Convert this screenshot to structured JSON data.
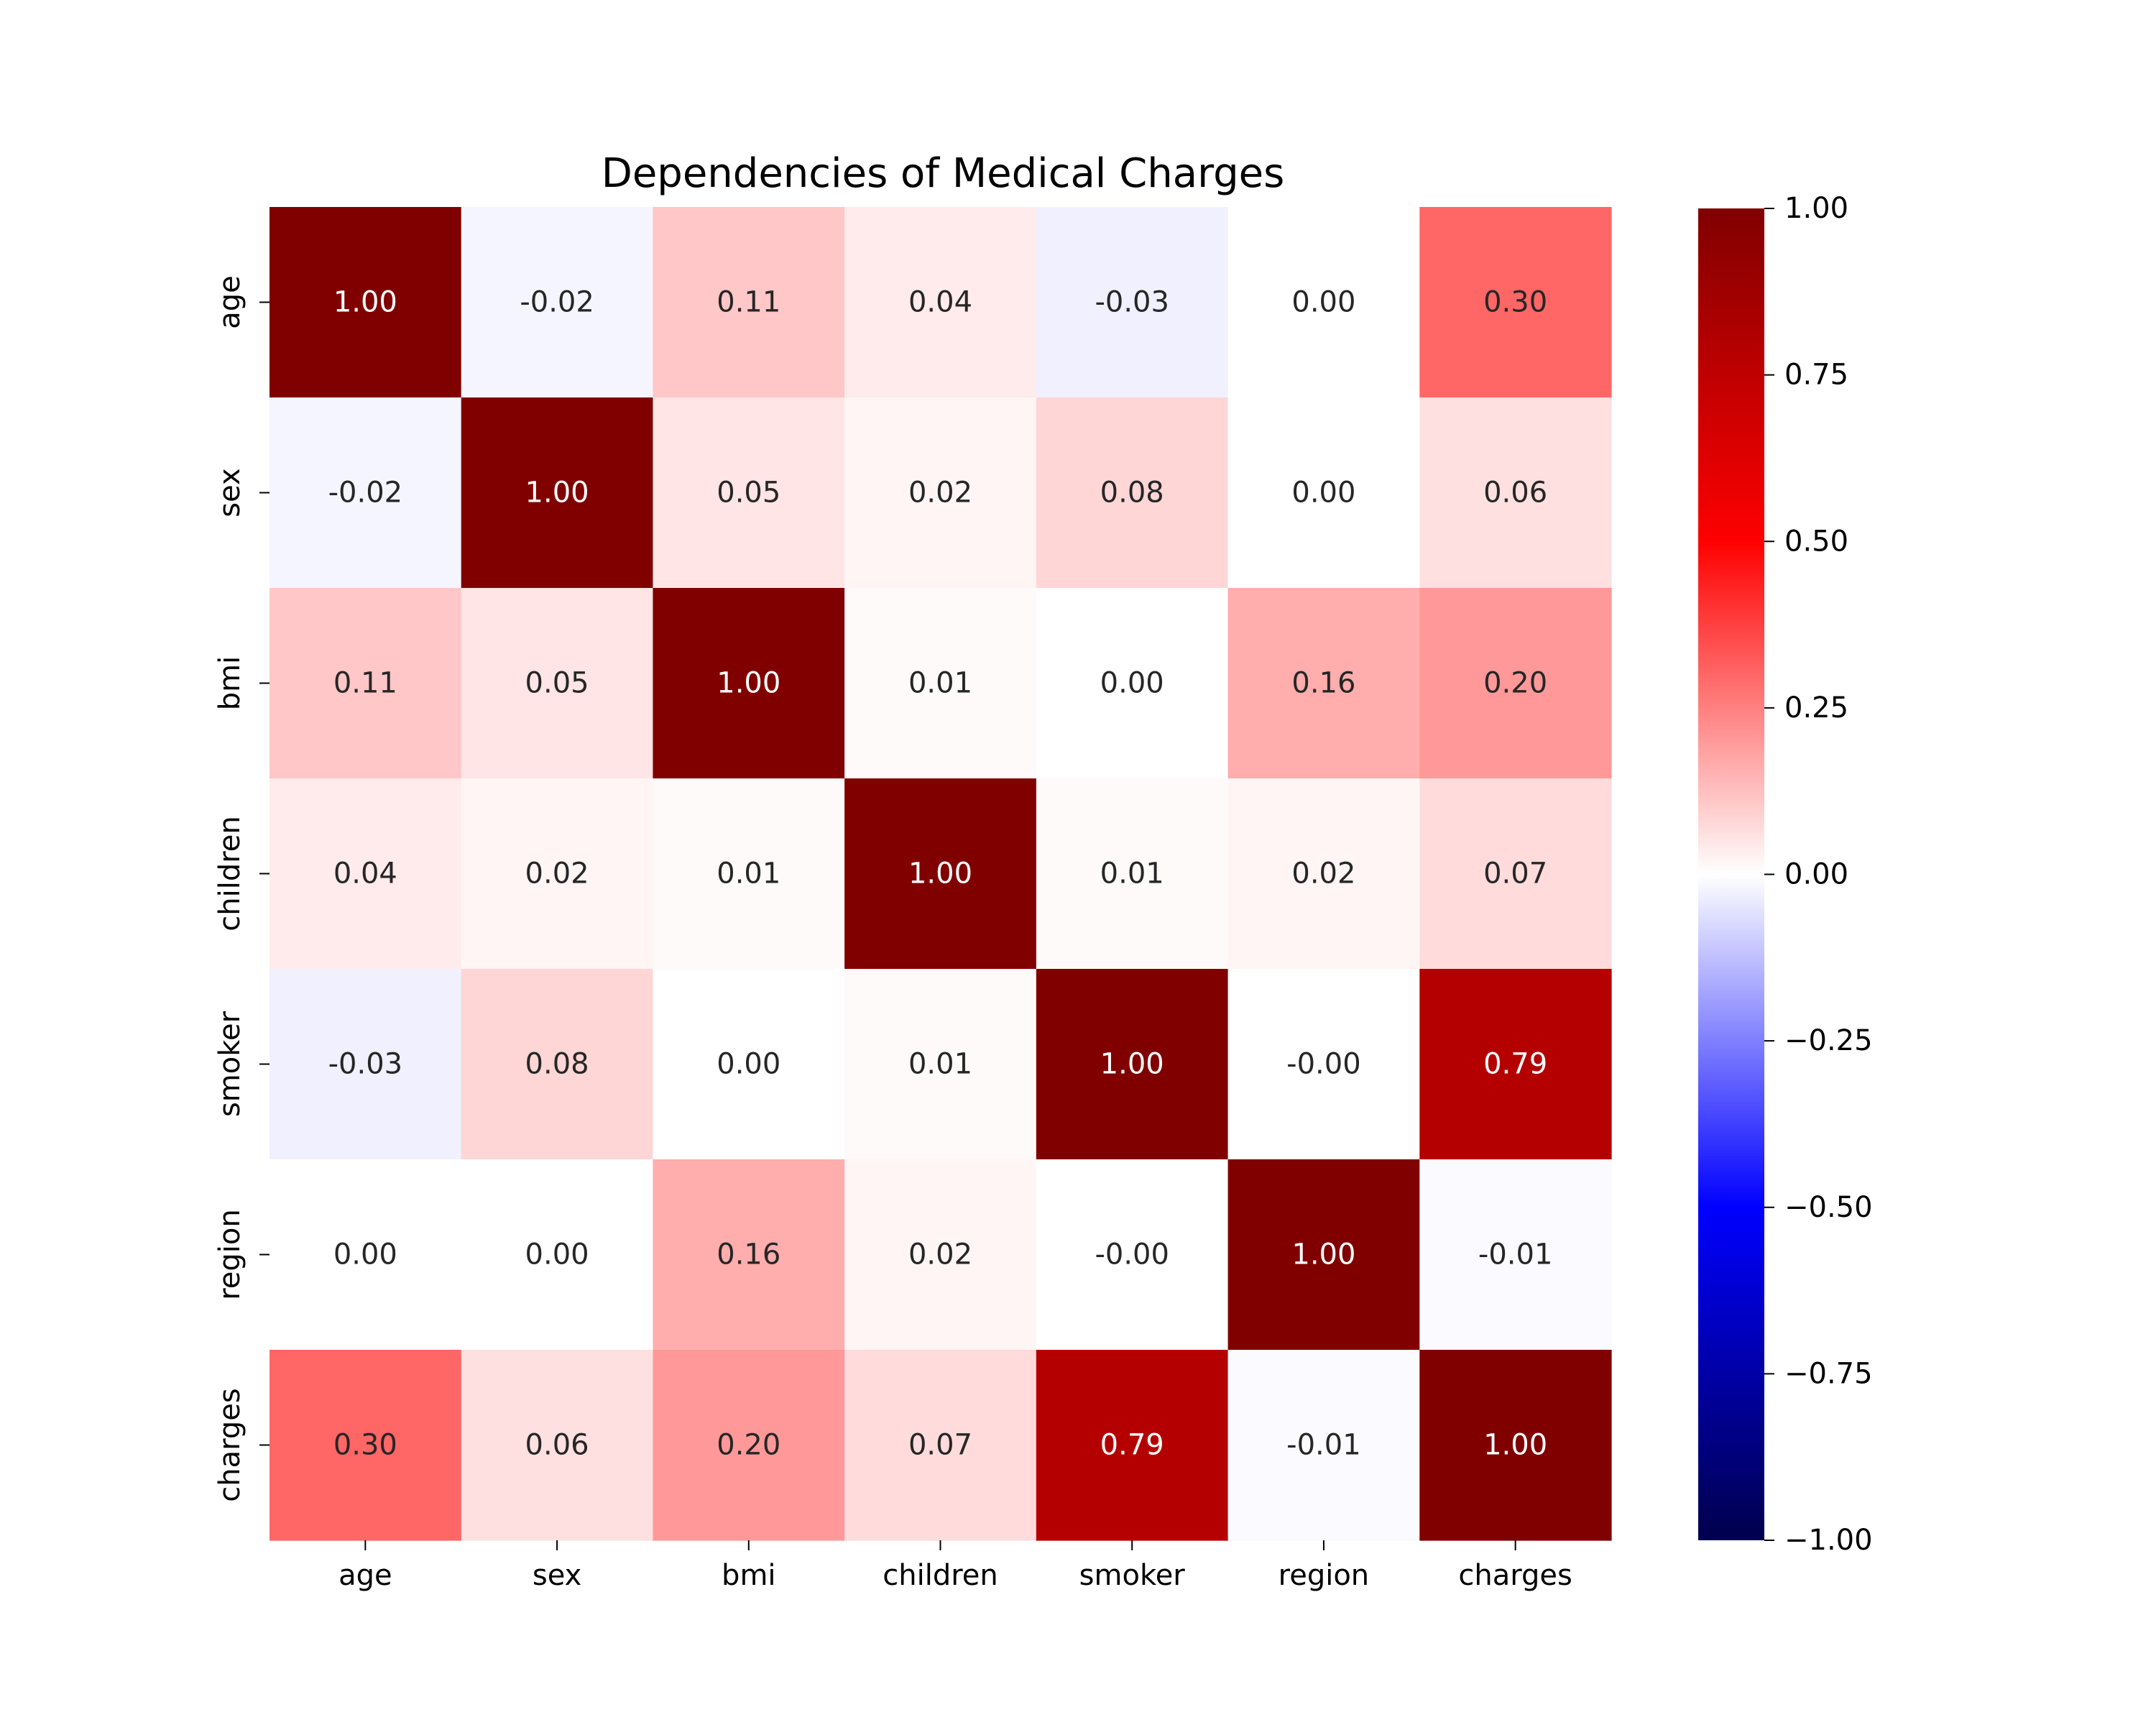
{
  "chart_data": {
    "type": "heatmap",
    "title": "Dependencies of Medical Charges",
    "xlabel": "",
    "ylabel": "",
    "x_categories": [
      "age",
      "sex",
      "bmi",
      "children",
      "smoker",
      "region",
      "charges"
    ],
    "y_categories": [
      "age",
      "sex",
      "bmi",
      "children",
      "smoker",
      "region",
      "charges"
    ],
    "values": [
      [
        1.0,
        -0.02,
        0.11,
        0.04,
        -0.03,
        0.0,
        0.3
      ],
      [
        -0.02,
        1.0,
        0.05,
        0.02,
        0.08,
        0.0,
        0.06
      ],
      [
        0.11,
        0.05,
        1.0,
        0.01,
        0.0,
        0.16,
        0.2
      ],
      [
        0.04,
        0.02,
        0.01,
        1.0,
        0.01,
        0.02,
        0.07
      ],
      [
        -0.03,
        0.08,
        0.0,
        0.01,
        1.0,
        -0.0,
        0.79
      ],
      [
        0.0,
        0.0,
        0.16,
        0.02,
        -0.0,
        1.0,
        -0.01
      ],
      [
        0.3,
        0.06,
        0.2,
        0.07,
        0.79,
        -0.01,
        1.0
      ]
    ],
    "cell_labels": [
      [
        "1.00",
        "-0.02",
        "0.11",
        "0.04",
        "-0.03",
        "0.00",
        "0.30"
      ],
      [
        "-0.02",
        "1.00",
        "0.05",
        "0.02",
        "0.08",
        "0.00",
        "0.06"
      ],
      [
        "0.11",
        "0.05",
        "1.00",
        "0.01",
        "0.00",
        "0.16",
        "0.20"
      ],
      [
        "0.04",
        "0.02",
        "0.01",
        "1.00",
        "0.01",
        "0.02",
        "0.07"
      ],
      [
        "-0.03",
        "0.08",
        "0.00",
        "0.01",
        "1.00",
        "-0.00",
        "0.79"
      ],
      [
        "0.00",
        "0.00",
        "0.16",
        "0.02",
        "-0.00",
        "1.00",
        "-0.01"
      ],
      [
        "0.30",
        "0.06",
        "0.20",
        "0.07",
        "0.79",
        "-0.01",
        "1.00"
      ]
    ],
    "colormap": "seismic",
    "colorbar": {
      "range": [
        -1.0,
        1.0
      ],
      "ticks": [
        1.0,
        0.75,
        0.5,
        0.25,
        0.0,
        -0.25,
        -0.5,
        -0.75,
        -1.0
      ],
      "tick_labels": [
        "1.00",
        "0.75",
        "0.50",
        "0.25",
        "0.00",
        "−0.25",
        "−0.50",
        "−0.75",
        "−1.00"
      ],
      "placement": "right"
    },
    "grid": false
  }
}
